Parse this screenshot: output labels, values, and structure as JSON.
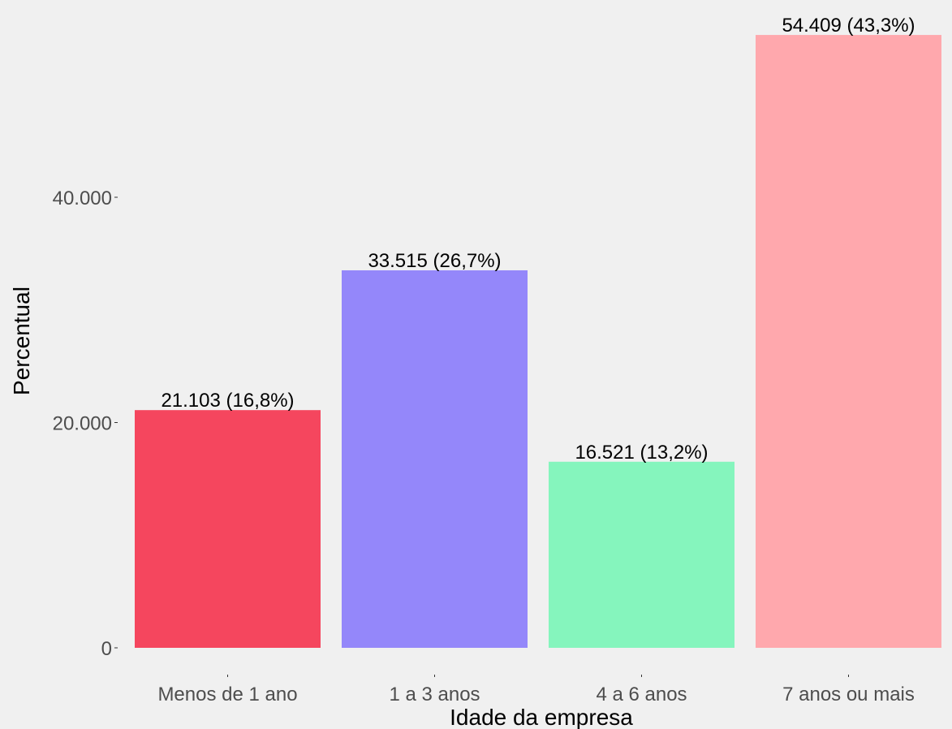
{
  "chart_data": {
    "type": "bar",
    "title": "",
    "xlabel": "Idade da empresa",
    "ylabel": "Percentual",
    "categories": [
      "Menos de 1 ano",
      "1 a 3 anos",
      "4 a 6 anos",
      "7 anos ou mais"
    ],
    "values": [
      21103,
      33515,
      16521,
      54409
    ],
    "data_labels": [
      "21.103 (16,8%)",
      "33.515 (26,7%)",
      "16.521 (13,2%)",
      "54.409 (43,3%)"
    ],
    "colors": [
      "#f5465e",
      "#9487fa",
      "#85f5bd",
      "#ffa8ad"
    ],
    "yticks": [
      0,
      20000,
      40000
    ],
    "ytick_labels": [
      "0",
      "20.000",
      "40.000"
    ],
    "ylim": [
      0,
      57000
    ],
    "grid": false,
    "legend": false
  }
}
